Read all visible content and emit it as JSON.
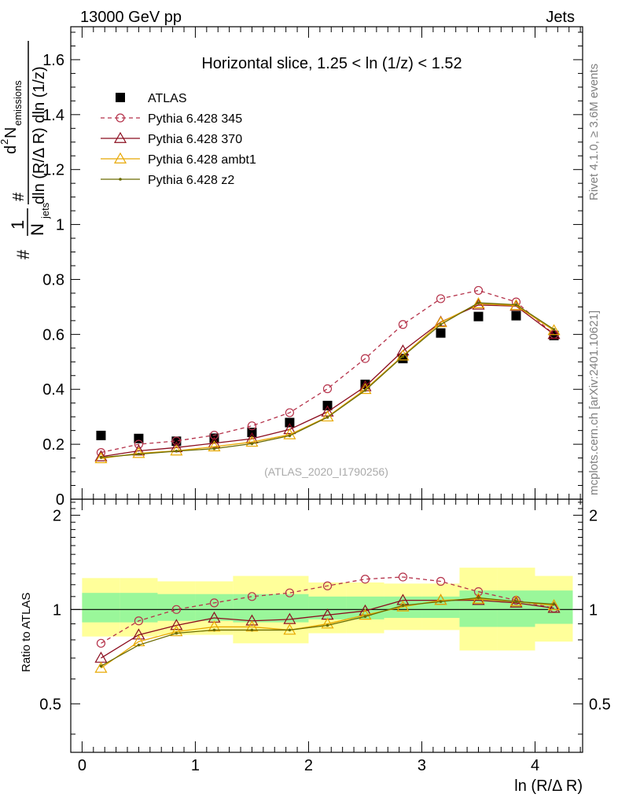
{
  "header": {
    "left": "13000 GeV pp",
    "right": "Jets"
  },
  "side_labels": {
    "right_top": "Rivet 4.1.0, ≥ 3.6M events",
    "right_bottom": "mcplots.cern.ch [arXiv:2401.10621]"
  },
  "main_axis_label_parts": {
    "numerator_d2": "d",
    "numerator_sup": "2",
    "numerator_N": "N",
    "numerator_sub": "emissions",
    "hash": "#",
    "one": "1",
    "N": "N",
    "jets_sub": "jets",
    "denominator": "dln (R/Δ R) dln (1/z)"
  },
  "chart_data": [
    {
      "type": "line",
      "title": "Horizontal slice, 1.25 < ln (1/z) < 1.52",
      "watermark": "(ATLAS_2020_I1790256)",
      "xlabel": "ln (R/Δ R)",
      "ylabel": "#1/N_jets # d²N_emissions / dln(R/ΔR) dln(1/z)",
      "xlim": [
        -0.1,
        4.42
      ],
      "ylim": [
        0,
        1.72
      ],
      "yticks": [
        0,
        0.2,
        0.4,
        0.6,
        0.8,
        1,
        1.2,
        1.4,
        1.6
      ],
      "ytick_labels": [
        "0",
        "0.2",
        "0.4",
        "0.6",
        "0.8",
        "1",
        "1.2",
        "1.4",
        "1.6"
      ],
      "legend_position": "top-left",
      "x": [
        0.167,
        0.5,
        0.833,
        1.167,
        1.5,
        1.833,
        2.167,
        2.5,
        2.833,
        3.167,
        3.5,
        3.833,
        4.167
      ],
      "series": [
        {
          "name": "ATLAS",
          "color": "#000000",
          "marker": "square",
          "line": "none",
          "values": [
            0.232,
            0.221,
            0.211,
            0.222,
            0.243,
            0.279,
            0.341,
            0.418,
            0.512,
            0.605,
            0.665,
            0.668,
            0.596
          ]
        },
        {
          "name": "Pythia 6.428 345",
          "color": "#b5324a",
          "marker": "circle-open",
          "line": "dashed",
          "values": [
            0.17,
            0.2,
            0.212,
            0.233,
            0.267,
            0.315,
            0.402,
            0.512,
            0.636,
            0.73,
            0.76,
            0.718,
            0.6
          ]
        },
        {
          "name": "Pythia 6.428 370",
          "color": "#8b0c1e",
          "marker": "triangle-open",
          "line": "solid",
          "values": [
            0.155,
            0.176,
            0.188,
            0.204,
            0.22,
            0.254,
            0.318,
            0.41,
            0.54,
            0.645,
            0.707,
            0.703,
            0.6
          ]
        },
        {
          "name": "Pythia 6.428 ambt1",
          "color": "#e8a800",
          "marker": "triangle-open",
          "line": "solid",
          "values": [
            0.148,
            0.167,
            0.176,
            0.191,
            0.208,
            0.235,
            0.3,
            0.4,
            0.522,
            0.643,
            0.712,
            0.705,
            0.614
          ]
        },
        {
          "name": "Pythia 6.428 z2",
          "color": "#6b6b00",
          "marker": "dot",
          "line": "solid",
          "values": [
            0.152,
            0.164,
            0.175,
            0.184,
            0.202,
            0.231,
            0.298,
            0.396,
            0.52,
            0.636,
            0.715,
            0.708,
            0.618
          ]
        }
      ]
    },
    {
      "type": "line",
      "title": "",
      "xlabel": "ln (R/Δ R)",
      "ylabel": "Ratio to ATLAS",
      "xlim": [
        -0.1,
        4.42
      ],
      "ylim": [
        0.35,
        2.25
      ],
      "yticks": [
        0.5,
        1,
        2
      ],
      "ytick_labels": [
        "0.5",
        "1",
        "2"
      ],
      "xticks": [
        0,
        1,
        2,
        3,
        4
      ],
      "xtick_labels": [
        "0",
        "1",
        "2",
        "3",
        "4"
      ],
      "x_bin_edges": [
        0,
        0.333,
        0.667,
        1.0,
        1.333,
        1.667,
        2.0,
        2.333,
        2.667,
        3.0,
        3.333,
        3.667,
        4.0,
        4.333
      ],
      "uncertainty_bands": {
        "stat_color": "#9af79a",
        "total_color": "#ffff9a",
        "inner_lo": [
          0.91,
          0.91,
          0.92,
          0.92,
          0.91,
          0.91,
          0.93,
          0.93,
          0.94,
          0.94,
          0.88,
          0.88,
          0.9
        ],
        "inner_hi": [
          1.13,
          1.13,
          1.12,
          1.12,
          1.12,
          1.12,
          1.1,
          1.1,
          1.1,
          1.1,
          1.15,
          1.15,
          1.15
        ],
        "outer_lo": [
          0.82,
          0.82,
          0.83,
          0.83,
          0.78,
          0.78,
          0.84,
          0.84,
          0.86,
          0.86,
          0.74,
          0.74,
          0.79
        ],
        "outer_hi": [
          1.26,
          1.26,
          1.23,
          1.23,
          1.28,
          1.28,
          1.22,
          1.22,
          1.21,
          1.21,
          1.36,
          1.36,
          1.28
        ]
      },
      "x": [
        0.167,
        0.5,
        0.833,
        1.167,
        1.5,
        1.833,
        2.167,
        2.5,
        2.833,
        3.167,
        3.5,
        3.833,
        4.167
      ],
      "series": [
        {
          "name": "Pythia 6.428 345",
          "color": "#b5324a",
          "marker": "circle-open",
          "line": "dashed",
          "values": [
            0.78,
            0.92,
            1.0,
            1.05,
            1.1,
            1.13,
            1.19,
            1.25,
            1.27,
            1.23,
            1.14,
            1.07,
            1.01
          ]
        },
        {
          "name": "Pythia 6.428 370",
          "color": "#8b0c1e",
          "marker": "triangle-open",
          "line": "solid",
          "values": [
            0.7,
            0.83,
            0.89,
            0.94,
            0.92,
            0.93,
            0.96,
            0.99,
            1.07,
            1.07,
            1.07,
            1.05,
            1.01
          ]
        },
        {
          "name": "Pythia 6.428 ambt1",
          "color": "#e8a800",
          "marker": "triangle-open",
          "line": "solid",
          "values": [
            0.65,
            0.79,
            0.85,
            0.88,
            0.88,
            0.86,
            0.9,
            0.96,
            1.02,
            1.07,
            1.08,
            1.06,
            1.03
          ]
        },
        {
          "name": "Pythia 6.428 z2",
          "color": "#6b6b00",
          "marker": "dot",
          "line": "solid",
          "values": [
            0.66,
            0.77,
            0.84,
            0.86,
            0.86,
            0.86,
            0.89,
            0.95,
            1.03,
            1.06,
            1.09,
            1.06,
            1.04
          ]
        }
      ]
    }
  ]
}
